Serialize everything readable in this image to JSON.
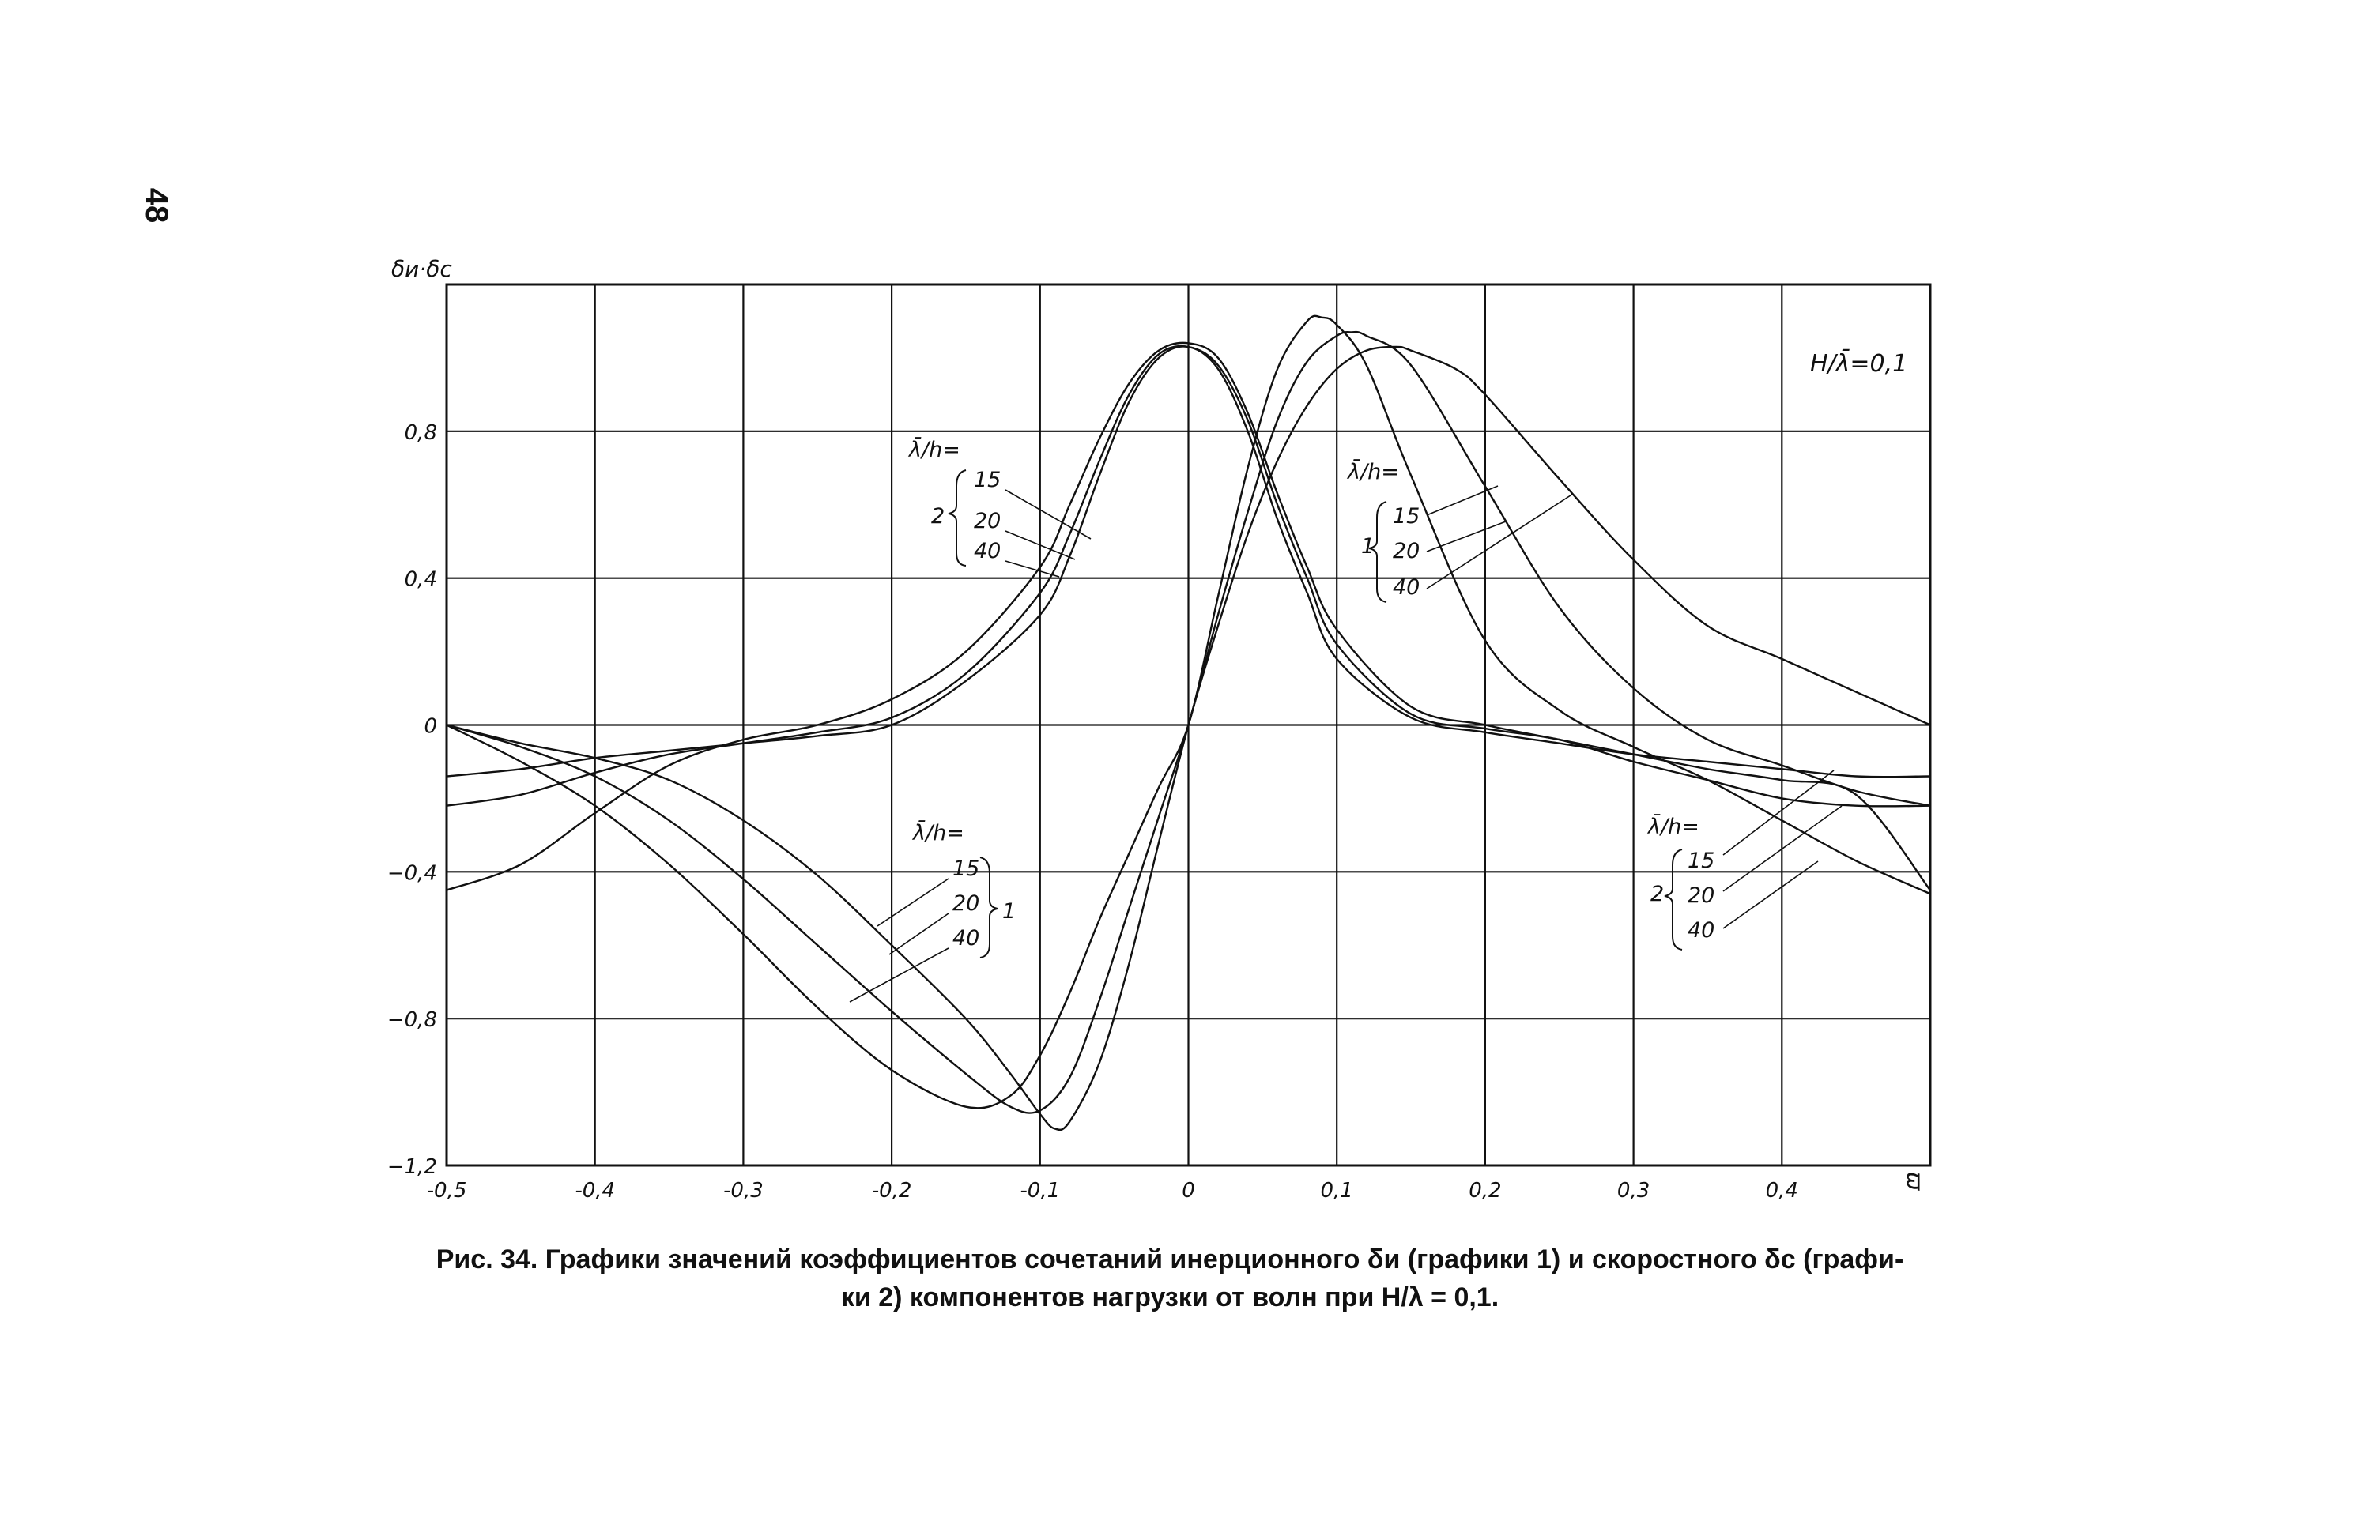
{
  "page_number": "48",
  "caption": {
    "line1": "Рис. 34. Графики значений коэффициентов сочетаний инерционного δи (графики 1) и скоростного δс (графи-",
    "line2": "ки 2) компонентов нагрузки от волн при H/λ = 0,1."
  },
  "chart_data": {
    "type": "line",
    "title": "",
    "xlabel": "ϖ",
    "ylabel": "δи·δс",
    "xlim": [
      -0.5,
      0.5
    ],
    "ylim": [
      -1.2,
      1.2
    ],
    "xticks": [
      -0.5,
      -0.4,
      -0.3,
      -0.2,
      -0.1,
      0,
      0.1,
      0.2,
      0.3,
      0.4
    ],
    "xtick_labels": [
      "-0,5",
      "-0,4",
      "-0,3",
      "-0,2",
      "-0,1",
      "0",
      "0,1",
      "0,2",
      "0,3",
      "0,4"
    ],
    "yticks": [
      0.8,
      0.4,
      0,
      -0.4,
      -0.8,
      -1.2
    ],
    "ytick_labels": [
      "0,8",
      "0,4",
      "0",
      "−0,4",
      "−0,8",
      "−1,2"
    ],
    "grid": true,
    "annotation_main": "H/λ̄=0,1",
    "group_labels": {
      "ratio_label": "λ̄/h=",
      "values": [
        "15",
        "20",
        "40"
      ],
      "family_1": "1",
      "family_2": "2"
    },
    "series": [
      {
        "family": "1",
        "ratio": "15",
        "x": [
          -0.5,
          -0.45,
          -0.4,
          -0.35,
          -0.3,
          -0.25,
          -0.2,
          -0.15,
          -0.12,
          -0.1,
          -0.08,
          -0.06,
          -0.04,
          -0.02,
          0,
          0.02,
          0.04,
          0.06,
          0.08,
          0.09,
          0.1,
          0.12,
          0.15,
          0.2,
          0.25,
          0.3,
          0.35,
          0.4,
          0.45,
          0.5
        ],
        "y": [
          0,
          -0.1,
          -0.22,
          -0.38,
          -0.57,
          -0.77,
          -0.94,
          -1.04,
          -1.01,
          -0.9,
          -0.73,
          -0.53,
          -0.35,
          -0.17,
          0,
          0.35,
          0.7,
          0.97,
          1.1,
          1.11,
          1.09,
          0.98,
          0.68,
          0.23,
          0.04,
          -0.06,
          -0.15,
          -0.26,
          -0.37,
          -0.46
        ]
      },
      {
        "family": "1",
        "ratio": "20",
        "x": [
          -0.5,
          -0.45,
          -0.4,
          -0.35,
          -0.3,
          -0.25,
          -0.2,
          -0.15,
          -0.12,
          -0.1,
          -0.08,
          -0.06,
          -0.04,
          -0.02,
          0,
          0.02,
          0.04,
          0.06,
          0.08,
          0.1,
          0.11,
          0.12,
          0.15,
          0.2,
          0.25,
          0.3,
          0.35,
          0.4,
          0.45,
          0.5
        ],
        "y": [
          0,
          -0.06,
          -0.14,
          -0.26,
          -0.42,
          -0.6,
          -0.78,
          -0.95,
          -1.04,
          -1.05,
          -0.96,
          -0.75,
          -0.5,
          -0.25,
          0,
          0.3,
          0.58,
          0.83,
          0.99,
          1.06,
          1.07,
          1.06,
          0.98,
          0.65,
          0.32,
          0.1,
          -0.04,
          -0.11,
          -0.18,
          -0.22
        ]
      },
      {
        "family": "1",
        "ratio": "40",
        "x": [
          -0.5,
          -0.45,
          -0.4,
          -0.35,
          -0.3,
          -0.25,
          -0.2,
          -0.15,
          -0.12,
          -0.1,
          -0.09,
          -0.08,
          -0.06,
          -0.04,
          -0.02,
          0,
          0.02,
          0.04,
          0.06,
          0.08,
          0.1,
          0.12,
          0.14,
          0.15,
          0.18,
          0.2,
          0.25,
          0.3,
          0.35,
          0.4,
          0.45,
          0.5
        ],
        "y": [
          0,
          -0.05,
          -0.09,
          -0.15,
          -0.26,
          -0.41,
          -0.6,
          -0.8,
          -0.95,
          -1.06,
          -1.1,
          -1.08,
          -0.92,
          -0.65,
          -0.32,
          0,
          0.27,
          0.52,
          0.72,
          0.87,
          0.97,
          1.02,
          1.03,
          1.02,
          0.97,
          0.9,
          0.67,
          0.45,
          0.27,
          0.18,
          0.09,
          0
        ]
      },
      {
        "family": "2",
        "ratio": "15",
        "x": [
          -0.5,
          -0.45,
          -0.4,
          -0.35,
          -0.3,
          -0.25,
          -0.2,
          -0.15,
          -0.1,
          -0.08,
          -0.06,
          -0.04,
          -0.02,
          0,
          0.02,
          0.04,
          0.06,
          0.08,
          0.1,
          0.15,
          0.2,
          0.25,
          0.3,
          0.35,
          0.4,
          0.45,
          0.5
        ],
        "y": [
          -0.45,
          -0.38,
          -0.24,
          -0.11,
          -0.04,
          0,
          0.07,
          0.2,
          0.43,
          0.6,
          0.78,
          0.93,
          1.02,
          1.04,
          1.0,
          0.85,
          0.63,
          0.43,
          0.26,
          0.05,
          0,
          -0.04,
          -0.08,
          -0.12,
          -0.15,
          -0.19,
          -0.45
        ]
      },
      {
        "family": "2",
        "ratio": "20",
        "x": [
          -0.5,
          -0.45,
          -0.4,
          -0.35,
          -0.3,
          -0.25,
          -0.2,
          -0.15,
          -0.1,
          -0.08,
          -0.06,
          -0.04,
          -0.02,
          0,
          0.02,
          0.04,
          0.06,
          0.08,
          0.1,
          0.15,
          0.2,
          0.25,
          0.3,
          0.35,
          0.4,
          0.45,
          0.5
        ],
        "y": [
          -0.22,
          -0.19,
          -0.13,
          -0.08,
          -0.05,
          -0.02,
          0.02,
          0.14,
          0.36,
          0.52,
          0.72,
          0.9,
          1.01,
          1.03,
          0.98,
          0.83,
          0.6,
          0.4,
          0.22,
          0.03,
          -0.01,
          -0.04,
          -0.1,
          -0.15,
          -0.2,
          -0.22,
          -0.22
        ]
      },
      {
        "family": "2",
        "ratio": "40",
        "x": [
          -0.5,
          -0.45,
          -0.4,
          -0.35,
          -0.3,
          -0.25,
          -0.2,
          -0.15,
          -0.1,
          -0.08,
          -0.06,
          -0.04,
          -0.02,
          0,
          0.02,
          0.04,
          0.06,
          0.08,
          0.1,
          0.15,
          0.2,
          0.25,
          0.3,
          0.35,
          0.4,
          0.45,
          0.5
        ],
        "y": [
          -0.14,
          -0.12,
          -0.09,
          -0.07,
          -0.05,
          -0.03,
          0,
          0.12,
          0.3,
          0.46,
          0.68,
          0.88,
          1.0,
          1.03,
          0.97,
          0.8,
          0.56,
          0.36,
          0.18,
          0.02,
          -0.02,
          -0.05,
          -0.08,
          -0.1,
          -0.12,
          -0.14,
          -0.14
        ]
      }
    ]
  }
}
